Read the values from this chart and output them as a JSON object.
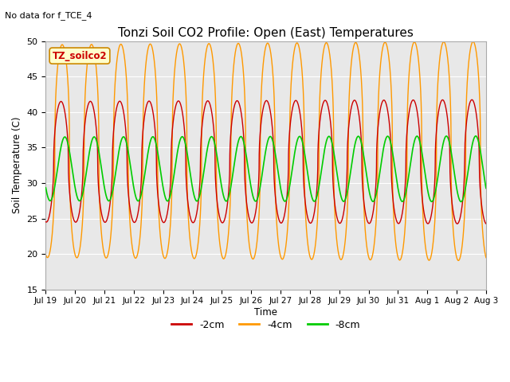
{
  "title": "Tonzi Soil CO2 Profile: Open (East) Temperatures",
  "no_data_text": "No data for f_TCE_4",
  "xlabel": "Time",
  "ylabel": "Soil Temperature (C)",
  "ylim": [
    15,
    50
  ],
  "colors": {
    "-2cm": "#cc0000",
    "-4cm": "#ff9900",
    "-8cm": "#00cc00"
  },
  "fig_bg": "#ffffff",
  "plot_bg": "#e8e8e8",
  "grid_color": "#ffffff",
  "annotation_text": "TZ_soilco2",
  "annotation_fg": "#cc0000",
  "annotation_bg": "#ffffcc",
  "annotation_edge": "#cc8800"
}
